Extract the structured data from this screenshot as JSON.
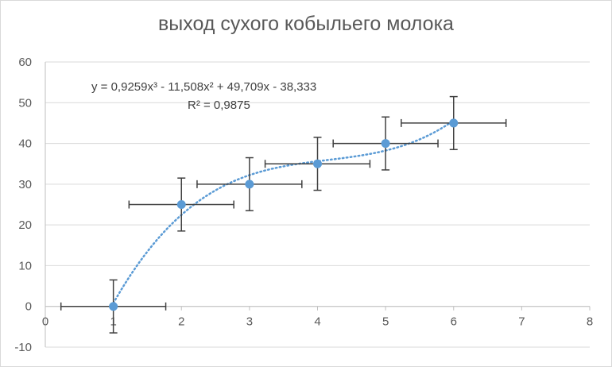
{
  "chart_data": {
    "type": "scatter",
    "title": "выход сухого кобыльего молока",
    "xlim": [
      0,
      8
    ],
    "ylim": [
      -10,
      60
    ],
    "x_ticks": [
      0,
      1,
      2,
      3,
      4,
      5,
      6,
      7,
      8
    ],
    "y_ticks": [
      -10,
      0,
      10,
      20,
      30,
      40,
      50,
      60
    ],
    "grid": "horizontal",
    "series": [
      {
        "x": [
          1,
          2,
          3,
          4,
          5,
          6
        ],
        "y": [
          0,
          25,
          30,
          35,
          40,
          45
        ],
        "y_error": [
          6.5,
          6.5,
          6.5,
          6.5,
          6.5,
          6.5
        ],
        "x_error": [
          0.77,
          0.77,
          0.77,
          0.77,
          0.77,
          0.77
        ],
        "color": "#5b9bd5"
      }
    ],
    "trendline": {
      "type": "polynomial",
      "order": 3,
      "coefficients": [
        0.9259,
        -11.508,
        49.709,
        -38.333
      ],
      "x_range": [
        1,
        6
      ],
      "style": "dotted",
      "color": "#5b9bd5",
      "equation": "y = 0,9259x³ - 11,508x² + 49,709x - 38,333",
      "r2": "R² = 0,9875"
    }
  }
}
